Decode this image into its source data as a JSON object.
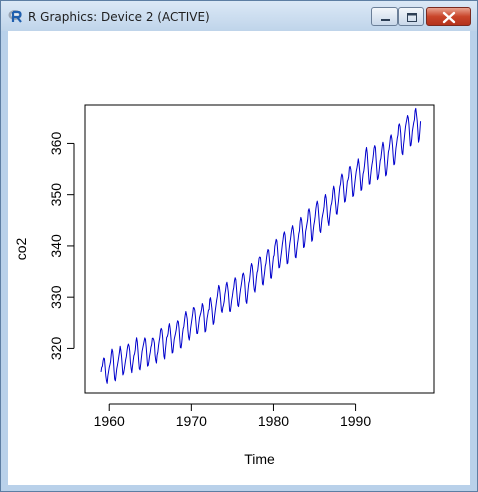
{
  "window": {
    "title": "R Graphics: Device 2 (ACTIVE)",
    "icon": "r-logo-icon",
    "controls": [
      "minimize-icon",
      "maximize-icon",
      "close-icon"
    ]
  },
  "chart_data": {
    "type": "line",
    "title": "",
    "xlabel": "Time",
    "ylabel": "co2",
    "xlim": [
      1957.05,
      1999.55
    ],
    "ylim": [
      311.3,
      367.5
    ],
    "x_ticks": [
      1960,
      1970,
      1980,
      1990
    ],
    "y_ticks": [
      320,
      330,
      340,
      350,
      360
    ],
    "x_tick_labels": [
      "1960",
      "1970",
      "1980",
      "1990"
    ],
    "y_tick_labels": [
      "320",
      "330",
      "340",
      "350",
      "360"
    ],
    "grid": false,
    "line_color": "#0000cc",
    "series": [
      {
        "x_start": 1959.0,
        "x_step": 0.08333,
        "values": [
          315.42,
          316.31,
          316.5,
          317.56,
          318.13,
          318.0,
          316.39,
          314.65,
          313.68,
          313.18,
          314.66,
          315.43,
          316.27,
          316.81,
          317.42,
          318.87,
          319.87,
          319.43,
          318.01,
          315.74,
          314.0,
          313.68,
          314.84,
          316.03,
          316.73,
          317.54,
          318.38,
          319.31,
          320.42,
          319.61,
          318.42,
          316.63,
          314.83,
          315.16,
          315.94,
          316.85,
          317.78,
          318.4,
          319.53,
          320.42,
          320.85,
          320.45,
          319.45,
          317.25,
          316.11,
          315.27,
          316.53,
          317.53,
          318.58,
          318.92,
          319.7,
          321.22,
          322.08,
          321.31,
          319.58,
          317.61,
          316.05,
          315.83,
          316.91,
          318.2,
          319.41,
          320.07,
          320.74,
          321.4,
          322.06,
          321.73,
          320.27,
          318.54,
          316.54,
          316.71,
          317.53,
          318.55,
          319.27,
          320.28,
          320.73,
          321.97,
          322.0,
          321.71,
          321.05,
          318.71,
          317.66,
          317.14,
          318.7,
          319.25,
          320.46,
          321.43,
          322.23,
          323.54,
          323.91,
          323.59,
          322.24,
          320.2,
          318.48,
          317.94,
          319.63,
          320.87,
          322.17,
          322.34,
          322.88,
          324.25,
          324.83,
          323.93,
          322.38,
          320.76,
          319.1,
          319.24,
          320.56,
          321.8,
          322.4,
          322.99,
          323.73,
          324.86,
          325.4,
          325.2,
          323.98,
          321.95,
          320.18,
          320.09,
          321.16,
          322.74,
          323.83,
          324.26,
          325.47,
          326.5,
          327.21,
          326.54,
          325.72,
          323.5,
          322.22,
          321.62,
          322.69,
          323.95,
          324.89,
          325.82,
          326.77,
          327.97,
          327.91,
          327.5,
          326.18,
          324.53,
          322.93,
          322.9,
          323.85,
          324.96,
          326.01,
          326.51,
          327.01,
          327.62,
          328.76,
          328.4,
          327.2,
          325.27,
          323.2,
          323.4,
          324.63,
          325.85,
          326.6,
          327.47,
          327.58,
          329.56,
          329.9,
          328.92,
          327.88,
          326.16,
          324.68,
          325.04,
          326.34,
          327.39,
          328.37,
          329.4,
          330.14,
          331.33,
          332.31,
          331.9,
          330.7,
          329.15,
          327.35,
          327.02,
          327.99,
          328.48,
          329.18,
          330.55,
          331.32,
          332.48,
          332.92,
          332.08,
          331.01,
          329.23,
          327.27,
          327.21,
          328.29,
          329.41,
          330.23,
          331.25,
          331.87,
          333.14,
          333.8,
          333.43,
          331.73,
          329.9,
          328.4,
          328.17,
          329.32,
          330.59,
          331.58,
          332.39,
          333.33,
          334.41,
          334.71,
          334.17,
          332.89,
          330.77,
          329.14,
          328.78,
          330.14,
          331.52,
          332.75,
          333.24,
          334.53,
          335.9,
          336.57,
          336.1,
          334.76,
          332.59,
          331.42,
          330.98,
          332.24,
          333.68,
          334.8,
          335.22,
          336.47,
          337.59,
          337.84,
          337.72,
          336.37,
          334.51,
          332.6,
          332.38,
          333.75,
          334.78,
          336.05,
          336.59,
          337.79,
          338.71,
          339.3,
          339.12,
          337.56,
          335.92,
          333.75,
          333.7,
          335.12,
          336.56,
          337.84,
          338.19,
          339.91,
          340.6,
          341.29,
          341.0,
          339.39,
          337.43,
          335.72,
          335.84,
          336.93,
          338.04,
          339.06,
          340.3,
          341.21,
          342.33,
          342.74,
          342.08,
          340.32,
          338.26,
          336.52,
          336.68,
          338.19,
          339.44,
          340.57,
          341.44,
          342.53,
          343.39,
          343.96,
          343.18,
          341.88,
          339.65,
          337.81,
          337.69,
          339.09,
          340.32,
          341.2,
          342.35,
          342.93,
          344.77,
          345.58,
          345.14,
          343.81,
          342.21,
          339.69,
          339.82,
          340.98,
          342.82,
          343.52,
          344.33,
          345.11,
          346.88,
          347.25,
          346.62,
          345.22,
          343.11,
          340.9,
          341.18,
          342.8,
          344.04,
          344.79,
          345.82,
          347.25,
          348.17,
          348.74,
          348.07,
          346.38,
          344.51,
          342.92,
          342.62,
          344.06,
          345.38,
          346.11,
          346.78,
          347.68,
          349.37,
          350.03,
          349.37,
          347.76,
          345.73,
          344.68,
          343.99,
          345.48,
          346.72,
          347.84,
          348.29,
          349.23,
          350.8,
          351.66,
          351.07,
          349.33,
          347.92,
          346.27,
          346.18,
          347.64,
          348.78,
          350.25,
          351.54,
          352.05,
          353.41,
          354.04,
          353.62,
          352.22,
          350.27,
          348.55,
          348.72,
          349.91,
          351.18,
          352.6,
          352.92,
          353.53,
          355.26,
          355.52,
          354.97,
          353.75,
          351.52,
          349.64,
          349.83,
          351.14,
          352.37,
          353.5,
          354.55,
          355.23,
          356.04,
          357.0,
          356.07,
          354.67,
          352.76,
          350.82,
          351.04,
          352.69,
          354.07,
          354.59,
          355.63,
          357.03,
          358.48,
          359.22,
          358.12,
          356.06,
          353.92,
          352.05,
          352.11,
          353.64,
          354.89,
          355.88,
          356.63,
          357.72,
          359.07,
          359.58,
          359.17,
          356.94,
          354.92,
          352.94,
          353.23,
          354.09,
          355.33,
          356.63,
          357.1,
          358.32,
          359.41,
          360.23,
          359.55,
          357.53,
          355.48,
          353.67,
          353.95,
          355.3,
          356.78,
          358.34,
          358.89,
          359.95,
          361.25,
          361.67,
          360.94,
          359.55,
          357.49,
          355.84,
          356.0,
          357.59,
          359.05,
          359.98,
          361.03,
          361.66,
          363.48,
          363.82,
          363.3,
          361.94,
          359.5,
          358.11,
          357.8,
          359.61,
          360.74,
          362.09,
          363.29,
          364.06,
          364.76,
          365.45,
          365.01,
          363.7,
          361.54,
          359.51,
          359.65,
          360.8,
          362.38,
          363.23,
          364.06,
          364.61,
          366.4,
          366.84,
          365.68,
          364.52,
          362.57,
          360.24,
          360.83,
          362.49,
          364.34
        ]
      }
    ]
  }
}
